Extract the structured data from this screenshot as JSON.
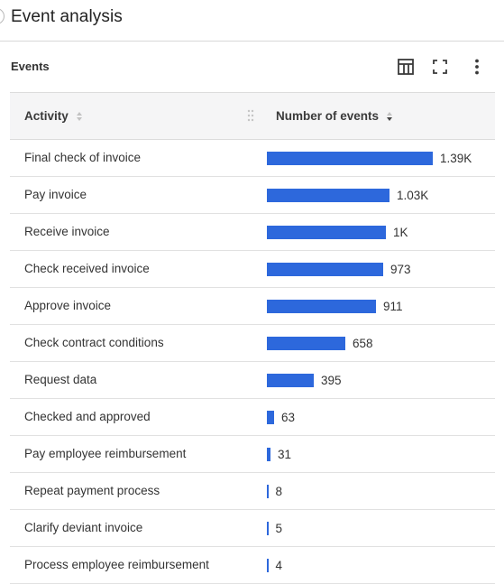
{
  "page": {
    "title": "Event analysis"
  },
  "panel": {
    "title": "Events"
  },
  "toolbar": {
    "table_icon": "table-icon",
    "expand_icon": "fullscreen-icon",
    "more_icon": "more-vertical-icon"
  },
  "table": {
    "columns": {
      "activity": "Activity",
      "events": "Number of events"
    },
    "bar_color": "#2d68dc",
    "max_value": 1390,
    "rows": [
      {
        "activity": "Final check of invoice",
        "value": 1390,
        "label": "1.39K"
      },
      {
        "activity": "Pay invoice",
        "value": 1030,
        "label": "1.03K"
      },
      {
        "activity": "Receive invoice",
        "value": 1000,
        "label": "1K"
      },
      {
        "activity": "Check received invoice",
        "value": 973,
        "label": "973"
      },
      {
        "activity": "Approve invoice",
        "value": 911,
        "label": "911"
      },
      {
        "activity": "Check contract conditions",
        "value": 658,
        "label": "658"
      },
      {
        "activity": "Request data",
        "value": 395,
        "label": "395"
      },
      {
        "activity": "Checked and approved",
        "value": 63,
        "label": "63"
      },
      {
        "activity": "Pay employee reimbursement",
        "value": 31,
        "label": "31"
      },
      {
        "activity": "Repeat payment process",
        "value": 8,
        "label": "8"
      },
      {
        "activity": "Clarify deviant invoice",
        "value": 5,
        "label": "5"
      },
      {
        "activity": "Process employee reimbursement",
        "value": 4,
        "label": "4"
      }
    ]
  }
}
